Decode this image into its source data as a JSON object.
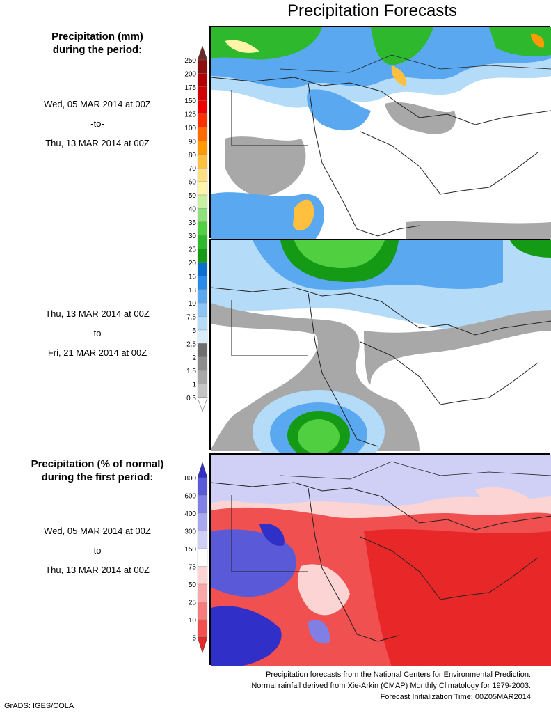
{
  "title": "Precipitation Forecasts",
  "legend_top": {
    "heading_line1": "Precipitation (mm)",
    "heading_line2": "during the period:",
    "levels": [
      "250",
      "200",
      "175",
      "150",
      "125",
      "100",
      "90",
      "80",
      "70",
      "60",
      "50",
      "40",
      "35",
      "30",
      "25",
      "20",
      "16",
      "13",
      "10",
      "7.5",
      "5",
      "2.5",
      "2",
      "1.5",
      "1",
      "0.5"
    ],
    "colors": [
      "#6b2a2a",
      "#8c1010",
      "#b00000",
      "#d00000",
      "#f00000",
      "#ff3000",
      "#ff6a00",
      "#ff9a00",
      "#ffc040",
      "#ffe080",
      "#fff4a8",
      "#c8f0a0",
      "#8ee07a",
      "#50d040",
      "#2db82d",
      "#149a14",
      "#0a6fd0",
      "#2a8ae8",
      "#5aa8f0",
      "#8cc4f4",
      "#b4dcf8",
      "#d8eefc",
      "#6e6e6e",
      "#8c8c8c",
      "#a8a8a8",
      "#c4c4c4",
      "#ffffff"
    ]
  },
  "periods": [
    {
      "start": "Wed, 05 MAR 2014 at 00Z",
      "sep": "-to-",
      "end": "Thu, 13 MAR 2014 at 00Z"
    },
    {
      "start": "Thu, 13 MAR 2014 at 00Z",
      "sep": "-to-",
      "end": "Fri, 21 MAR 2014 at 00Z"
    }
  ],
  "legend_bottom": {
    "heading_line1": "Precipitation (% of normal)",
    "heading_line2": "during the first period:",
    "levels": [
      "800",
      "600",
      "400",
      "300",
      "150",
      "75",
      "50",
      "25",
      "10",
      "5"
    ],
    "colors": [
      "#3030c8",
      "#5a5ad8",
      "#8080e4",
      "#a8a8ee",
      "#d0d0f6",
      "#ffffff",
      "#fcd4d4",
      "#f8a8a8",
      "#f47c7c",
      "#f05050",
      "#e82828"
    ]
  },
  "period_normal": {
    "start": "Wed, 05 MAR 2014 at 00Z",
    "sep": "-to-",
    "end": "Thu, 13 MAR 2014 at 00Z"
  },
  "footer": {
    "line1": "Precipitation forecasts from the National Centers for Environmental Prediction.",
    "line2": "Normal rainfall derived from Xie-Arkin (CMAP) Monthly Climatology for 1979-2003.",
    "line3": "Forecast Initialization Time: 00Z05MAR2014"
  },
  "credit": "GrADS: IGES/COLA"
}
